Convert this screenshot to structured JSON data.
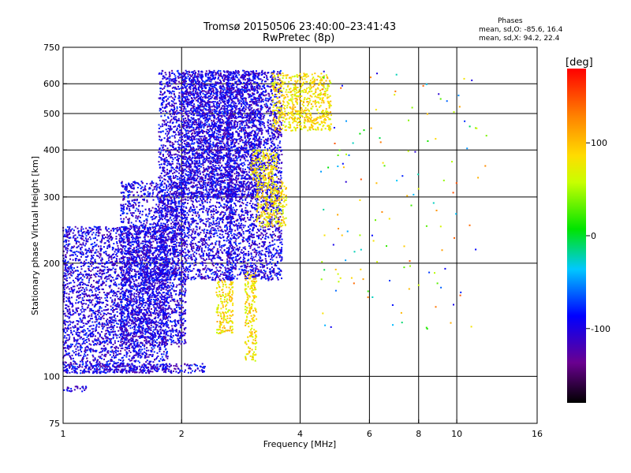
{
  "header": {
    "title": "Tromsø 20150506 23:40:00–23:41:43",
    "subtitle": "RwPretec (8p)",
    "phase_title": "Phases",
    "phase_line1": "mean, sd,O: -85.6, 16.4",
    "phase_line2": "mean, sd,X:  94.2, 22.4"
  },
  "chart_data": {
    "type": "scatter",
    "xlabel": "Frequency [MHz]",
    "ylabel": "Stationary phase Virtual Height [km]",
    "x_scale": "log",
    "y_scale": "log",
    "xlim": [
      1,
      16
    ],
    "ylim": [
      75,
      750
    ],
    "x_ticks": [
      1,
      2,
      4,
      6,
      8,
      10,
      16
    ],
    "x_tick_labels": [
      "1",
      "2",
      "4",
      "6",
      "8",
      "10",
      "16"
    ],
    "y_ticks": [
      75,
      100,
      200,
      300,
      400,
      500,
      600,
      750
    ],
    "y_tick_labels": [
      "75",
      "100",
      "200",
      "300",
      "400",
      "500",
      "600",
      "750"
    ],
    "grid": true,
    "colorbar": {
      "label": "[deg]",
      "range": [
        -180,
        180
      ],
      "ticks": [
        -100,
        0,
        100
      ],
      "tick_labels": [
        "-100",
        "0",
        "100"
      ],
      "colormap": "rainbow (black→purple→blue→cyan→green→yellow→orange→red)"
    },
    "point_groups": [
      {
        "phase": -100,
        "description": "O-mode traces (blue)",
        "regions": [
          {
            "x": [
              1.0,
              1.85
            ],
            "y": [
              102,
              250
            ]
          },
          {
            "x": [
              1.4,
              2.05
            ],
            "y": [
              120,
              330
            ]
          },
          {
            "x": [
              1.75,
              2.7
            ],
            "y": [
              180,
              650
            ]
          },
          {
            "x": [
              2.0,
              3.2
            ],
            "y": [
              300,
              650
            ]
          },
          {
            "x": [
              2.6,
              3.6
            ],
            "y": [
              180,
              650
            ]
          },
          {
            "x": [
              1.0,
              2.3
            ],
            "y": [
              102,
              108
            ]
          },
          {
            "x": [
              1.0,
              1.15
            ],
            "y": [
              91,
              94
            ]
          }
        ]
      },
      {
        "phase": 85,
        "description": "X-mode traces (yellow/orange)",
        "regions": [
          {
            "x": [
              3.1,
              3.7
            ],
            "y": [
              250,
              330
            ]
          },
          {
            "x": [
              3.0,
              3.5
            ],
            "y": [
              330,
              400
            ]
          },
          {
            "x": [
              3.4,
              4.8
            ],
            "y": [
              450,
              640
            ]
          },
          {
            "x": [
              2.45,
              2.7
            ],
            "y": [
              130,
              180
            ]
          },
          {
            "x": [
              2.9,
              3.1
            ],
            "y": [
              110,
              190
            ]
          }
        ]
      },
      {
        "phase": 10,
        "description": "scattered outliers",
        "regions": [
          {
            "x": [
              4.5,
              12.0
            ],
            "y": [
              130,
              650
            ]
          }
        ]
      }
    ]
  }
}
